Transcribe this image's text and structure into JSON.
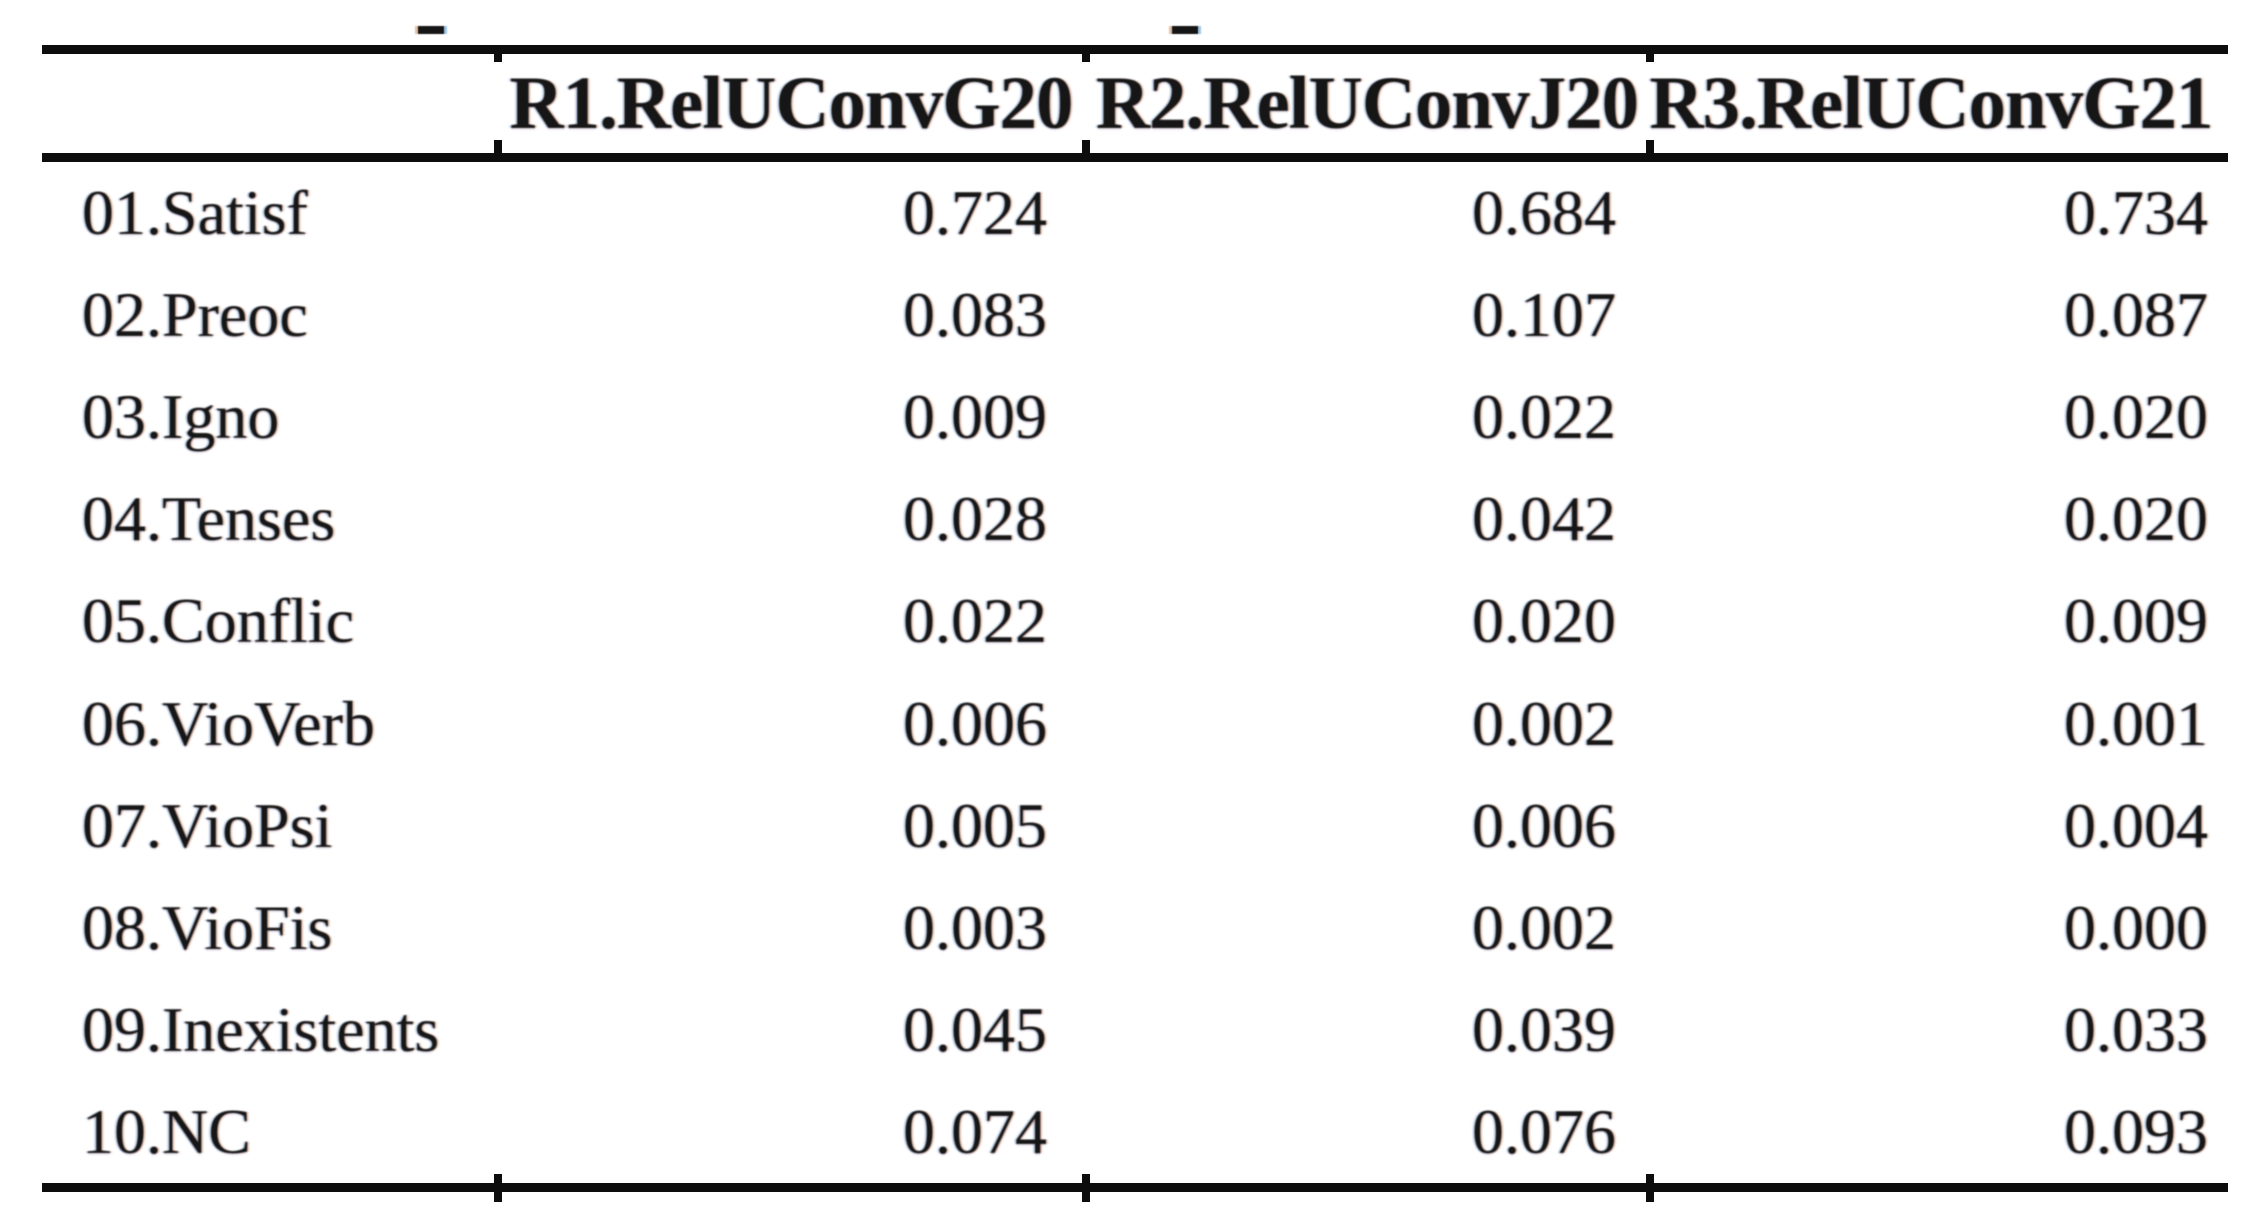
{
  "colors": {
    "ink": "#161616",
    "rule": "#0d0d0d",
    "background": "#ffffff"
  },
  "table": {
    "columns": [
      "R1.RelUConvG20",
      "R2.RelUConvJ20",
      "R3.RelUConvG21"
    ],
    "rows": [
      {
        "label": "01.Satisf",
        "values": [
          "0.724",
          "0.684",
          "0.734"
        ]
      },
      {
        "label": "02.Preoc",
        "values": [
          "0.083",
          "0.107",
          "0.087"
        ]
      },
      {
        "label": "03.Igno",
        "values": [
          "0.009",
          "0.022",
          "0.020"
        ]
      },
      {
        "label": "04.Tenses",
        "values": [
          "0.028",
          "0.042",
          "0.020"
        ]
      },
      {
        "label": "05.Conflic",
        "values": [
          "0.022",
          "0.020",
          "0.009"
        ]
      },
      {
        "label": "06.VioVerb",
        "values": [
          "0.006",
          "0.002",
          "0.001"
        ]
      },
      {
        "label": "07.VioPsi",
        "values": [
          "0.005",
          "0.006",
          "0.004"
        ]
      },
      {
        "label": "08.VioFis",
        "values": [
          "0.003",
          "0.002",
          "0.000"
        ]
      },
      {
        "label": "09.Inexistents",
        "values": [
          "0.045",
          "0.039",
          "0.033"
        ]
      },
      {
        "label": "10.NC",
        "values": [
          "0.074",
          "0.076",
          "0.093"
        ]
      }
    ]
  }
}
